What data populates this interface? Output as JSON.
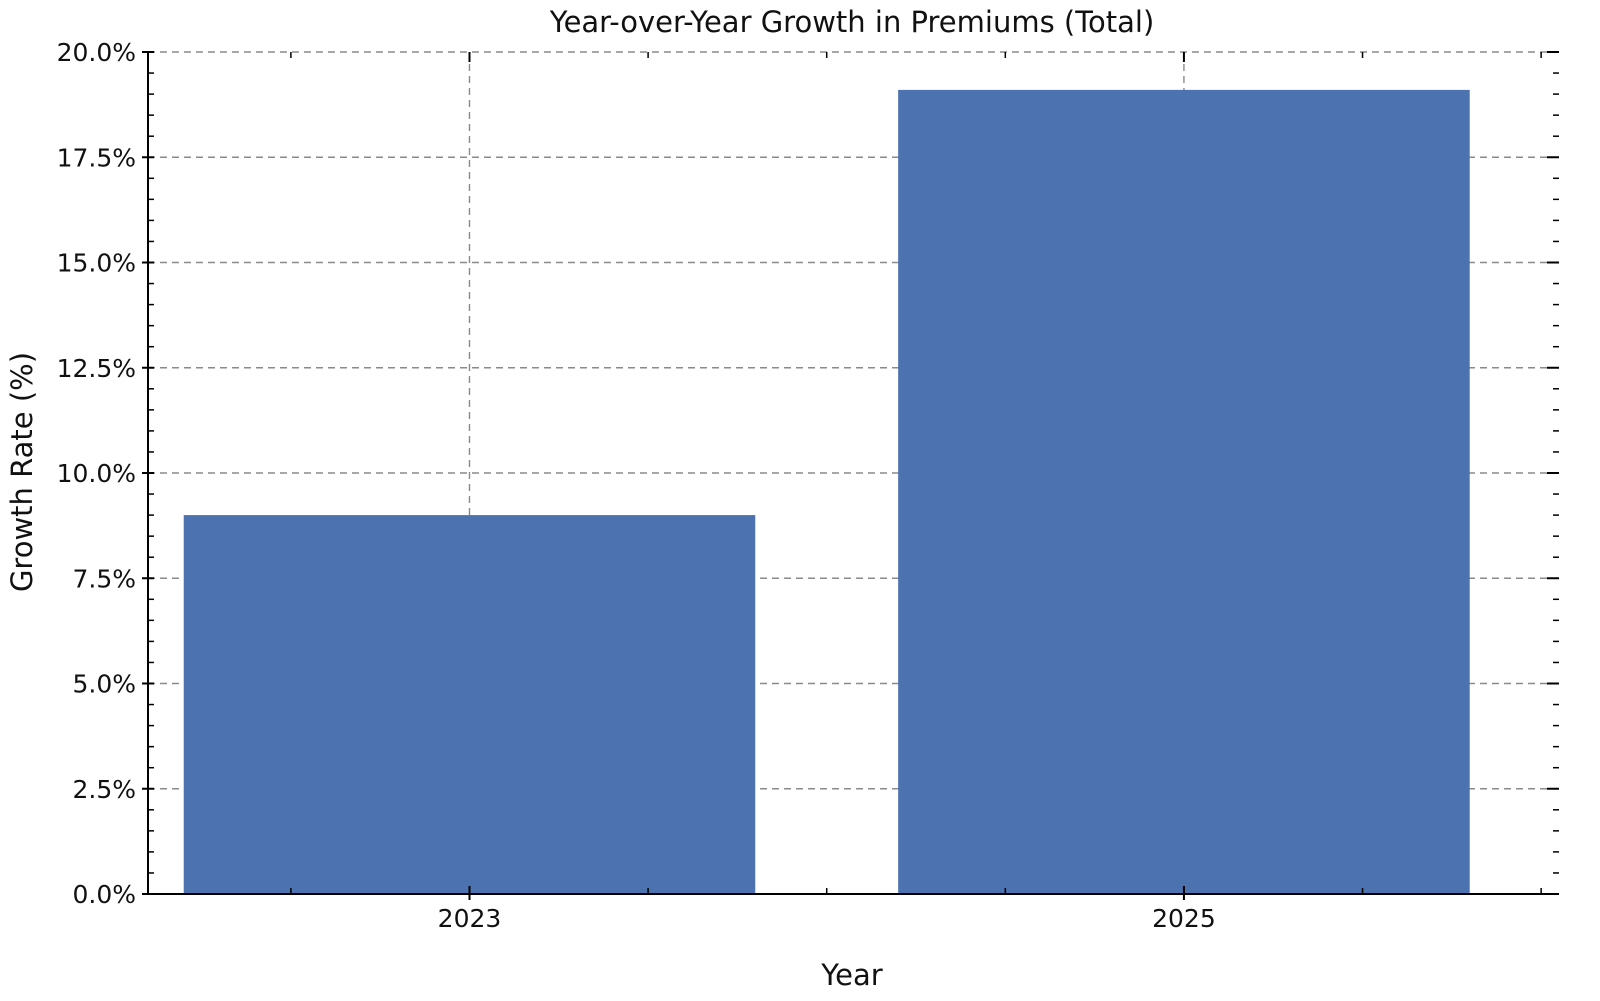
{
  "chart_data": {
    "type": "bar",
    "title": "Year-over-Year Growth in Premiums (Total)",
    "xlabel": "Year",
    "ylabel": "Growth Rate (%)",
    "categories": [
      "2023",
      "2025"
    ],
    "series": [
      {
        "values": [
          9.0,
          19.1
        ],
        "color": "#4c72b0"
      }
    ],
    "x_numeric": [
      2023,
      2025
    ],
    "xlim": [
      2022.1,
      2026.05
    ],
    "ylim": [
      0,
      20
    ],
    "yticks": [
      0.0,
      2.5,
      5.0,
      7.5,
      10.0,
      12.5,
      15.0,
      17.5,
      20.0
    ],
    "ytick_labels": [
      "0.0%",
      "2.5%",
      "5.0%",
      "7.5%",
      "10.0%",
      "12.5%",
      "15.0%",
      "17.5%",
      "20.0%"
    ],
    "grid": true,
    "grid_style": "dashed",
    "legend": false
  }
}
